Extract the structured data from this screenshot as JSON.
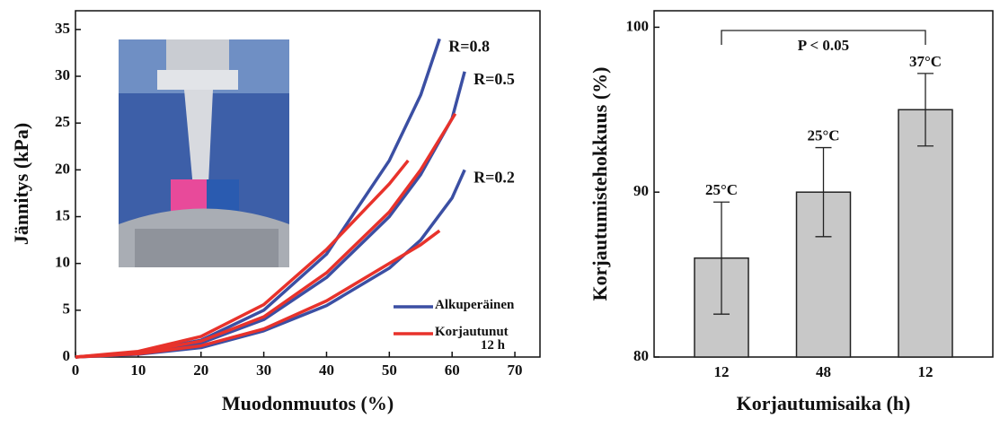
{
  "chart_data": [
    {
      "type": "line",
      "xlabel": "Muodonmuutos (%)",
      "ylabel": "Jännitys (kPa)",
      "xlim": [
        0,
        74
      ],
      "xticks": [
        0,
        10,
        20,
        30,
        40,
        50,
        60,
        70
      ],
      "ylim": [
        0,
        37
      ],
      "yticks": [
        0,
        5,
        10,
        15,
        20,
        25,
        30,
        35
      ],
      "legend": "lower right",
      "series": [
        {
          "name": "Alkuperäinen",
          "color": "#3b4fa3",
          "curves": [
            {
              "label": "R=0.8",
              "x": [
                0,
                10,
                20,
                30,
                40,
                50,
                55,
                58
              ],
              "values": [
                0,
                0.5,
                1.8,
                5,
                11,
                21,
                28,
                34
              ]
            },
            {
              "label": "R=0.5",
              "x": [
                0,
                10,
                20,
                30,
                40,
                50,
                55,
                60,
                62
              ],
              "values": [
                0,
                0.4,
                1.5,
                4,
                8.5,
                15,
                19.5,
                25.5,
                30.5
              ]
            },
            {
              "label": "R=0.2",
              "x": [
                0,
                10,
                20,
                30,
                40,
                50,
                55,
                60,
                62
              ],
              "values": [
                0,
                0.3,
                1,
                2.8,
                5.5,
                9.5,
                12.5,
                17,
                20
              ]
            }
          ]
        },
        {
          "name": "Korjautunut 12 h",
          "color": "#e8322b",
          "curves": [
            {
              "x": [
                0,
                10,
                20,
                30,
                40,
                50,
                53
              ],
              "values": [
                0,
                0.6,
                2.2,
                5.6,
                11.5,
                18.5,
                21
              ]
            },
            {
              "x": [
                0,
                10,
                20,
                30,
                40,
                50,
                55,
                60.5
              ],
              "values": [
                0,
                0.5,
                1.7,
                4.3,
                9,
                15.5,
                20,
                26
              ]
            },
            {
              "x": [
                0,
                10,
                20,
                30,
                40,
                50,
                55,
                58
              ],
              "values": [
                0,
                0.35,
                1.2,
                3,
                6,
                10,
                12,
                13.5
              ]
            }
          ]
        }
      ]
    },
    {
      "type": "bar",
      "xlabel": "Korjautumisaika (h)",
      "ylabel": "Korjautumistehokkuus (%)",
      "categories": [
        "12",
        "48",
        "12"
      ],
      "values": [
        86,
        90,
        95
      ],
      "errors": [
        3.4,
        2.7,
        2.2
      ],
      "bar_labels": [
        "25°C",
        "25°C",
        "37°C"
      ],
      "color": "#c8c8c8",
      "ylim": [
        80,
        101
      ],
      "yticks": [
        80,
        90,
        100
      ],
      "significance": "P < 0.05"
    }
  ]
}
